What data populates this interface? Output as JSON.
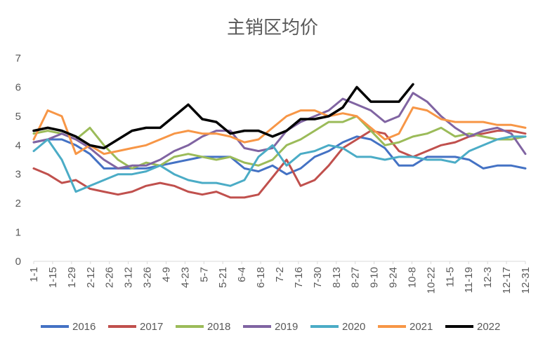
{
  "chart_data": {
    "type": "line",
    "title": "主销区均价",
    "xlabel": "",
    "ylabel": "",
    "ylim": [
      0,
      7
    ],
    "yticks": [
      0,
      1,
      2,
      3,
      4,
      5,
      6,
      7
    ],
    "grid": false,
    "legend_position": "bottom",
    "x_ticks": [
      "1-1",
      "1-15",
      "1-29",
      "2-12",
      "2-26",
      "3-12",
      "3-26",
      "4-9",
      "4-23",
      "5-7",
      "5-21",
      "6-4",
      "6-18",
      "7-2",
      "7-16",
      "7-30",
      "8-13",
      "8-27",
      "9-10",
      "9-24",
      "10-8",
      "10-22",
      "11-5",
      "11-19",
      "12-3",
      "12-17",
      "12-31"
    ],
    "series": [
      {
        "name": "2016",
        "color": "#4472C4",
        "values": [
          4.1,
          4.2,
          4.2,
          4.0,
          3.7,
          3.2,
          3.2,
          3.2,
          3.2,
          3.3,
          3.4,
          3.5,
          3.6,
          3.6,
          3.6,
          3.2,
          3.1,
          3.3,
          3.0,
          3.2,
          3.6,
          3.8,
          4.1,
          4.3,
          4.2,
          3.9,
          3.3,
          3.3,
          3.6,
          3.6,
          3.6,
          3.5,
          3.2,
          3.3,
          3.3,
          3.2
        ]
      },
      {
        "name": "2017",
        "color": "#C0504D",
        "values": [
          3.2,
          3.0,
          2.7,
          2.8,
          2.5,
          2.4,
          2.3,
          2.4,
          2.6,
          2.7,
          2.6,
          2.4,
          2.3,
          2.4,
          2.2,
          2.2,
          2.3,
          2.9,
          3.5,
          2.6,
          2.8,
          3.3,
          3.9,
          4.2,
          4.5,
          4.4,
          3.8,
          3.6,
          3.8,
          4.0,
          4.1,
          4.3,
          4.4,
          4.5,
          4.5,
          4.4
        ]
      },
      {
        "name": "2018",
        "color": "#9BBB59",
        "values": [
          4.4,
          4.5,
          4.4,
          4.2,
          4.6,
          4.0,
          3.5,
          3.2,
          3.4,
          3.3,
          3.6,
          3.7,
          3.6,
          3.5,
          3.6,
          3.4,
          3.3,
          3.5,
          4.0,
          4.2,
          4.5,
          4.8,
          4.8,
          5.0,
          4.5,
          4.0,
          4.1,
          4.3,
          4.4,
          4.6,
          4.3,
          4.4,
          4.3,
          4.2,
          4.2,
          4.3
        ]
      },
      {
        "name": "2019",
        "color": "#8064A2",
        "values": [
          4.1,
          4.2,
          4.4,
          4.2,
          3.9,
          3.5,
          3.2,
          3.3,
          3.3,
          3.5,
          3.8,
          4.0,
          4.3,
          4.5,
          4.5,
          3.9,
          3.8,
          3.9,
          4.5,
          4.8,
          5.0,
          5.2,
          5.6,
          5.4,
          5.2,
          4.8,
          5.0,
          5.8,
          5.5,
          5.0,
          4.6,
          4.3,
          4.5,
          4.6,
          4.4,
          3.7
        ]
      },
      {
        "name": "2020",
        "color": "#4BACC6",
        "values": [
          3.8,
          4.2,
          3.5,
          2.4,
          2.6,
          2.8,
          3.0,
          3.0,
          3.1,
          3.3,
          3.0,
          2.8,
          2.7,
          2.7,
          2.6,
          2.8,
          3.6,
          4.0,
          3.3,
          3.7,
          3.8,
          4.0,
          3.9,
          3.6,
          3.6,
          3.5,
          3.6,
          3.6,
          3.5,
          3.5,
          3.4,
          3.8,
          4.0,
          4.2,
          4.3,
          4.3
        ]
      },
      {
        "name": "2021",
        "color": "#F79646",
        "values": [
          4.2,
          5.2,
          5.0,
          3.7,
          4.0,
          3.7,
          3.8,
          3.9,
          4.0,
          4.2,
          4.4,
          4.5,
          4.4,
          4.4,
          4.3,
          4.1,
          4.2,
          4.6,
          5.0,
          5.2,
          5.2,
          5.0,
          5.1,
          5.0,
          4.6,
          4.2,
          4.4,
          5.3,
          5.2,
          4.9,
          4.8,
          4.8,
          4.8,
          4.7,
          4.7,
          4.6
        ]
      },
      {
        "name": "2022",
        "color": "#000000",
        "values": [
          4.5,
          4.6,
          4.5,
          4.3,
          4.0,
          3.9,
          4.2,
          4.5,
          4.6,
          4.6,
          5.0,
          5.4,
          4.9,
          4.8,
          4.4,
          4.5,
          4.5,
          4.3,
          4.5,
          4.9,
          4.9,
          5.0,
          5.3,
          6.0,
          5.5,
          5.5,
          5.5,
          6.1,
          null,
          null,
          null,
          null,
          null,
          null,
          null,
          null
        ]
      }
    ]
  }
}
